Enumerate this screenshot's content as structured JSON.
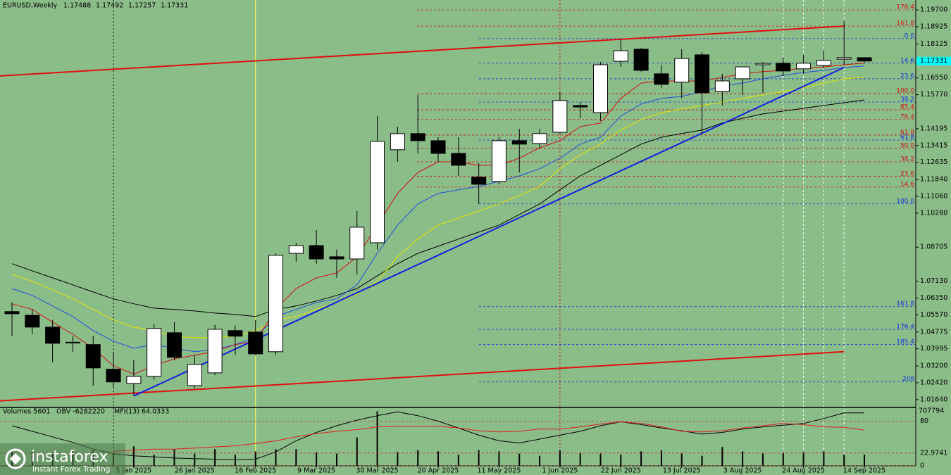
{
  "chart_data": [
    {
      "type": "candlestick",
      "title": "EURUSD,Weekly",
      "categories": [
        null,
        null,
        null,
        null,
        null,
        null,
        "5 Jan 2025",
        null,
        null,
        "26 Jan 2025",
        null,
        null,
        "16 Feb 2025",
        null,
        null,
        "9 Mar 2025",
        null,
        null,
        "30 Mar 2025",
        null,
        null,
        "20 Apr 2025",
        null,
        null,
        "11 May 2025",
        null,
        null,
        "1 Jun 2025",
        null,
        null,
        "22 Jun 2025",
        null,
        null,
        "13 Jul 2025",
        null,
        null,
        "3 Aug 2025",
        null,
        null,
        "24 Aug 2025",
        null,
        null,
        "14 Sep 2025"
      ],
      "open": [
        1.0572,
        1.0555,
        1.05,
        1.0428,
        1.0419,
        1.0305,
        1.0239,
        1.0272,
        1.0474,
        1.0229,
        1.0288,
        1.0484,
        1.0477,
        1.0386,
        1.0842,
        1.0878,
        1.0826,
        1.0816,
        1.0891,
        1.1322,
        1.1397,
        1.1364,
        1.1305,
        1.1195,
        1.1175,
        1.1364,
        1.1351,
        1.1403,
        1.1527,
        1.1494,
        1.1732,
        1.1788,
        1.1674,
        1.1635,
        1.1762,
        1.1592,
        1.1651,
        1.1716,
        1.1723,
        1.1697,
        1.1713,
        1.1742,
        1.17488
      ],
      "high": [
        1.0614,
        1.0582,
        1.0533,
        1.0458,
        1.0458,
        1.0386,
        1.0347,
        1.0516,
        1.0523,
        1.037,
        1.051,
        1.0507,
        1.0533,
        1.0842,
        1.0891,
        1.095,
        1.0859,
        1.1038,
        1.1478,
        1.1429,
        1.1576,
        1.138,
        1.138,
        1.126,
        1.138,
        1.1419,
        1.1419,
        1.1592,
        1.1543,
        1.1729,
        1.1837,
        1.1794,
        1.1716,
        1.1788,
        1.1775,
        1.1674,
        1.1706,
        1.1729,
        1.1749,
        1.1762,
        1.1781,
        1.1918,
        1.17492
      ],
      "low": [
        1.0458,
        1.0467,
        1.0337,
        1.0386,
        1.0229,
        1.0223,
        1.0184,
        1.0256,
        1.0347,
        1.0217,
        1.0278,
        1.037,
        1.037,
        1.037,
        1.0803,
        1.0794,
        1.0728,
        1.0745,
        1.0859,
        1.1266,
        1.1305,
        1.1266,
        1.1201,
        1.1071,
        1.1162,
        1.1217,
        1.1331,
        1.1397,
        1.1468,
        1.1455,
        1.1706,
        1.1684,
        1.1609,
        1.156,
        1.1397,
        1.1527,
        1.1576,
        1.1586,
        1.1664,
        1.1674,
        1.17,
        1.1716,
        1.17257
      ],
      "close": [
        1.0562,
        1.05,
        1.0425,
        1.043,
        1.0311,
        1.0246,
        1.0272,
        1.0494,
        1.036,
        1.0327,
        1.049,
        1.0458,
        1.0376,
        1.0833,
        1.0878,
        1.0816,
        1.0816,
        1.0963,
        1.1361,
        1.1397,
        1.1364,
        1.1305,
        1.125,
        1.1162,
        1.1364,
        1.1348,
        1.1397,
        1.155,
        1.152,
        1.1716,
        1.1781,
        1.169,
        1.1625,
        1.1745,
        1.1586,
        1.1641,
        1.1706,
        1.1722,
        1.1687,
        1.1723,
        1.1736,
        1.1749,
        1.17331
      ],
      "up_color": "#ffffff",
      "down_color": "#000000",
      "ylim": [
        1.0131,
        1.2016
      ],
      "yticks": [
        {
          "value": 1.197,
          "label": "1.19700"
        },
        {
          "value": 1.18925,
          "label": "1.18925"
        },
        {
          "value": 1.18125,
          "label": "1.18125"
        },
        {
          "value": 1.1655,
          "label": "1.16550"
        },
        {
          "value": 1.1577,
          "label": "1.15770"
        },
        {
          "value": 1.14195,
          "label": "1.14195"
        },
        {
          "value": 1.13415,
          "label": "1.13415"
        },
        {
          "value": 1.12635,
          "label": "1.12635"
        },
        {
          "value": 1.1184,
          "label": "1.11840"
        },
        {
          "value": 1.1106,
          "label": "1.11060"
        },
        {
          "value": 1.1028,
          "label": "1.10280"
        },
        {
          "value": 1.08705,
          "label": "1.08705"
        },
        {
          "value": 1.0713,
          "label": "1.07130"
        },
        {
          "value": 1.0635,
          "label": "1.06350"
        },
        {
          "value": 1.0557,
          "label": "1.05570"
        },
        {
          "value": 1.04775,
          "label": "1.04775"
        },
        {
          "value": 1.03995,
          "label": "1.03995"
        },
        {
          "value": 1.032,
          "label": "1.03200"
        },
        {
          "value": 1.0242,
          "label": "1.02420"
        },
        {
          "value": 1.0164,
          "label": "1.01640"
        }
      ],
      "overlays": [
        {
          "color": "#000000",
          "values": [
            1.0794,
            1.0761,
            1.0728,
            1.0696,
            1.0663,
            1.0631,
            1.0608,
            1.0588,
            1.0582,
            1.0575,
            1.0565,
            1.0559,
            1.0549,
            1.0582,
            1.0598,
            1.0621,
            1.0647,
            1.0679,
            1.0738,
            1.0794,
            1.0842,
            1.0875,
            1.0908,
            1.094,
            1.0973,
            1.1022,
            1.1071,
            1.1136,
            1.1201,
            1.125,
            1.1299,
            1.1348,
            1.138,
            1.1397,
            1.1413,
            1.1446,
            1.1468,
            1.1488,
            1.1501,
            1.1514,
            1.1527,
            1.154,
            1.1553
          ]
        },
        {
          "color": "#e6e600",
          "values": [
            1.0745,
            1.0712,
            1.0673,
            1.0631,
            1.0582,
            1.0533,
            1.05,
            1.0484,
            1.0458,
            1.0451,
            1.0451,
            1.0458,
            1.0484,
            1.0533,
            1.0549,
            1.0582,
            1.0614,
            1.0653,
            1.0712,
            1.0826,
            1.0908,
            1.0973,
            1.1005,
            1.1038,
            1.1071,
            1.111,
            1.1152,
            1.1234,
            1.1299,
            1.1348,
            1.1413,
            1.1462,
            1.1494,
            1.1511,
            1.1527,
            1.1543,
            1.156,
            1.1576,
            1.1592,
            1.1609,
            1.1631,
            1.1651,
            1.1657
          ]
        },
        {
          "color": "#1f4fe0",
          "values": [
            1.0679,
            1.0647,
            1.0598,
            1.0549,
            1.0484,
            1.0435,
            1.0402,
            1.0419,
            1.0402,
            1.0386,
            1.0396,
            1.0419,
            1.0451,
            1.0549,
            1.0582,
            1.0614,
            1.0631,
            1.0696,
            1.0842,
            1.0973,
            1.1071,
            1.112,
            1.1136,
            1.1152,
            1.1175,
            1.1201,
            1.1234,
            1.1283,
            1.1348,
            1.138,
            1.1478,
            1.1534,
            1.156,
            1.1569,
            1.1592,
            1.1618,
            1.1631,
            1.1651,
            1.1667,
            1.168,
            1.169,
            1.1703,
            1.171
          ]
        },
        {
          "color": "#d01010",
          "values": [
            1.0608,
            1.0582,
            1.0523,
            1.0467,
            1.0402,
            1.0321,
            1.0282,
            1.0321,
            1.0353,
            1.037,
            1.0386,
            1.0419,
            1.0435,
            1.0582,
            1.0679,
            1.0728,
            1.0751,
            1.0826,
            1.0973,
            1.112,
            1.1217,
            1.1266,
            1.1266,
            1.125,
            1.125,
            1.1283,
            1.1331,
            1.1364,
            1.1429,
            1.1446,
            1.156,
            1.1631,
            1.1641,
            1.1641,
            1.1641,
            1.1657,
            1.1674,
            1.1684,
            1.169,
            1.17,
            1.1706,
            1.1716,
            1.1723
          ]
        }
      ],
      "trendlines": [
        {
          "color": "#e01010",
          "x": [
            -0.6,
            41
          ],
          "y": [
            1.1664,
            1.1895
          ]
        },
        {
          "color": "#e01010",
          "x": [
            -0.6,
            41
          ],
          "y": [
            1.0158,
            1.0386
          ]
        },
        {
          "color": "#1020e0",
          "x": [
            6,
            41
          ],
          "y": [
            1.0181,
            1.1703
          ]
        }
      ],
      "vlines": [
        {
          "index": 5,
          "color": "#000000",
          "dash": "2,3"
        },
        {
          "index": 12,
          "color": "#ffff40",
          "dash": "none"
        },
        {
          "index": 27,
          "color": "#c01010",
          "dash": "2,3"
        },
        {
          "index": 38,
          "color": "#ffffff",
          "dash": "3,3"
        },
        {
          "index": 39,
          "color": "#ffffff",
          "dash": "3,3"
        },
        {
          "index": 40,
          "color": "#ffffff",
          "dash": "3,3"
        },
        {
          "index": 41,
          "color": "#ffffff",
          "dash": "3,3"
        }
      ],
      "fib_levels": [
        {
          "label": "176.4",
          "value": 1.197,
          "color": "#d01010"
        },
        {
          "label": "161.8",
          "value": 1.1895,
          "color": "#d01010"
        },
        {
          "label": "100.0",
          "value": 1.1582,
          "color": "#d01010"
        },
        {
          "label": "85.4",
          "value": 1.1507,
          "color": "#d01010"
        },
        {
          "label": "76.4",
          "value": 1.1462,
          "color": "#d01010"
        },
        {
          "label": "61.8",
          "value": 1.139,
          "color": "#d01010"
        },
        {
          "label": "50.0",
          "value": 1.1328,
          "color": "#d01010"
        },
        {
          "label": "38.2",
          "value": 1.1266,
          "color": "#d01010"
        },
        {
          "label": "23.6",
          "value": 1.1198,
          "color": "#d01010"
        },
        {
          "label": "14.6",
          "value": 1.1149,
          "color": "#d01010"
        },
        {
          "label": "0.0",
          "value": 1.1837,
          "color": "#1030e0"
        },
        {
          "label": "14.6",
          "value": 1.1723,
          "color": "#1030e0"
        },
        {
          "label": "23.6",
          "value": 1.1651,
          "color": "#1030e0"
        },
        {
          "label": "38.2",
          "value": 1.1543,
          "color": "#1030e0"
        },
        {
          "label": "61.8",
          "value": 1.1367,
          "color": "#1030e0"
        },
        {
          "label": "100.0",
          "value": 1.1071,
          "color": "#1030e0"
        },
        {
          "label": "161.8",
          "value": 1.0595,
          "color": "#1030e0"
        },
        {
          "label": "176.4",
          "value": 1.049,
          "color": "#1030e0"
        },
        {
          "label": "185.4",
          "value": 1.0419,
          "color": "#1030e0"
        },
        {
          "label": "208",
          "value": 1.0246,
          "color": "#1030e0"
        }
      ],
      "watermark": {
        "brand": "instaforex",
        "tagline": "Instant Forex Trading"
      }
    },
    {
      "type": "bar",
      "header": [
        "Volumes 5601",
        "OBV -6282220",
        "MFI(13) 64.0333"
      ],
      "top_label": "707794",
      "values": [
        30,
        25,
        22,
        26,
        28,
        22,
        35,
        20,
        30,
        22,
        30,
        20,
        26,
        30,
        30,
        24,
        22,
        51,
        98,
        25,
        28,
        26,
        20,
        28,
        26,
        22,
        18,
        28,
        24,
        22,
        20,
        26,
        28,
        22,
        18,
        34,
        26,
        22,
        24,
        25,
        26,
        20,
        20
      ],
      "color": "#000000",
      "series": [
        {
          "color": "#000000",
          "values": [
            72,
            62,
            52,
            42,
            30,
            22,
            18,
            16,
            14,
            13,
            12,
            11,
            12,
            25,
            45,
            60,
            72,
            82,
            90,
            97,
            90,
            80,
            68,
            55,
            45,
            41,
            48,
            55,
            62,
            72,
            79,
            74,
            68,
            63,
            57,
            60,
            66,
            70,
            73,
            76,
            85,
            95,
            95
          ]
        },
        {
          "color": "#e02020",
          "values": [
            null,
            null,
            null,
            null,
            null,
            26,
            28,
            30,
            30,
            32,
            34,
            36,
            40,
            45,
            52,
            58,
            62,
            65,
            70,
            71,
            71,
            71,
            68,
            63,
            61,
            62,
            66,
            66,
            70,
            75,
            79,
            76,
            70,
            62,
            61,
            63,
            68,
            72,
            76,
            74,
            70,
            69,
            64
          ]
        }
      ],
      "ylim": [
        0,
        101
      ],
      "yticks": [
        80,
        22.9741,
        0
      ]
    }
  ]
}
